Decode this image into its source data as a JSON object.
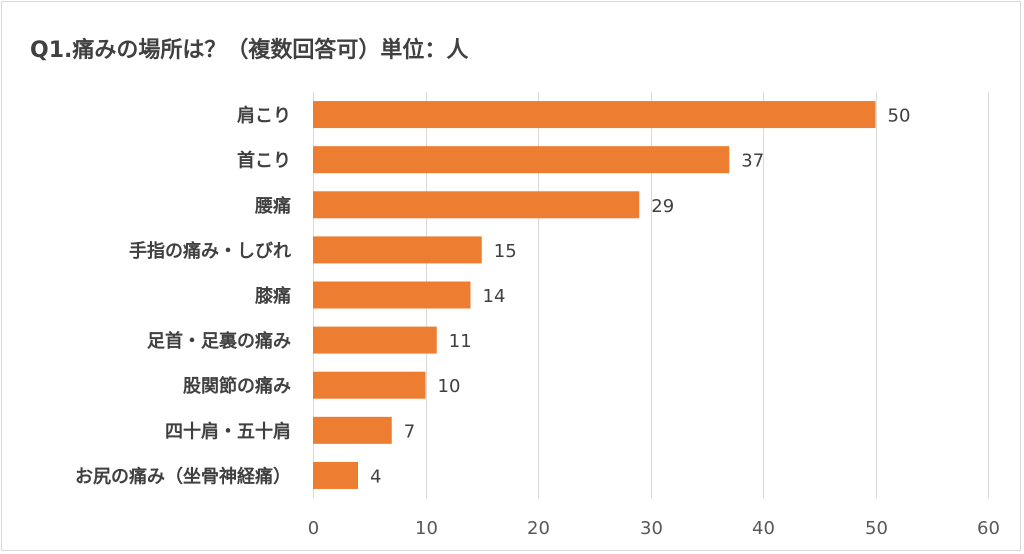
{
  "chart_data": {
    "type": "bar",
    "orientation": "horizontal",
    "title": "Q1.痛みの場所は？（複数回答可）単位：人",
    "categories": [
      "肩こり",
      "首こり",
      "腰痛",
      "手指の痛み・しびれ",
      "膝痛",
      "足首・足裏の痛み",
      "股関節の痛み",
      "四十肩・五十肩",
      "お尻の痛み（坐骨神経痛）"
    ],
    "values": [
      50,
      37,
      29,
      15,
      14,
      11,
      10,
      7,
      4
    ],
    "xlim": [
      0,
      60
    ],
    "xticks": [
      0,
      10,
      20,
      30,
      40,
      50,
      60
    ],
    "grid": true,
    "legend": "none",
    "bar_color": "#ED7D31",
    "grid_color": "#D9D9D9"
  }
}
